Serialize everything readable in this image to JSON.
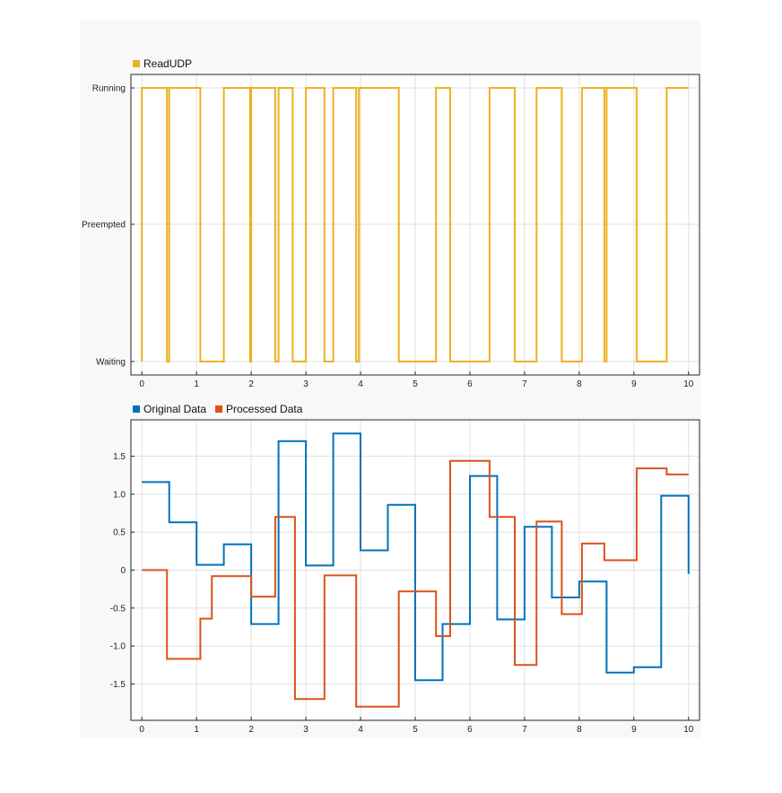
{
  "chart_data": [
    {
      "type": "line",
      "step": true,
      "legend": [
        "ReadUDP"
      ],
      "legend_placement": "top-left",
      "x_ticks": [
        "0",
        "1",
        "2",
        "3",
        "4",
        "5",
        "6",
        "7",
        "8",
        "9",
        "10"
      ],
      "xlim": [
        -0.2,
        10.2
      ],
      "y_ticks": [
        "Waiting",
        "Preempted",
        "Running"
      ],
      "grid": true,
      "series": [
        {
          "name": "ReadUDP",
          "color": "#EDB120",
          "x": [
            0,
            0,
            0.46,
            0.46,
            0.5,
            0.5,
            1.07,
            1.07,
            1.28,
            1.28,
            1.5,
            1.5,
            1.98,
            1.98,
            2,
            2,
            2.44,
            2.44,
            2.5,
            2.5,
            2.76,
            2.76,
            2.95,
            2.95,
            3,
            3,
            3.34,
            3.34,
            3.5,
            3.5,
            3.92,
            3.92,
            3.97,
            3.97,
            4.7,
            4.7,
            5.38,
            5.38,
            5.64,
            5.64,
            6.36,
            6.36,
            6.82,
            6.82,
            7.22,
            7.22,
            7.68,
            7.68,
            8.05,
            8.05,
            8.46,
            8.46,
            8.5,
            8.5,
            9.05,
            9.05,
            9.6,
            9.6,
            10
          ],
          "y": [
            "Waiting",
            "Running",
            "Running",
            "Waiting",
            "Waiting",
            "Running",
            "Running",
            "Waiting",
            "Waiting",
            "Waiting",
            "Waiting",
            "Running",
            "Running",
            "Waiting",
            "Waiting",
            "Running",
            "Running",
            "Waiting",
            "Waiting",
            "Running",
            "Running",
            "Waiting",
            "Waiting",
            "Waiting",
            "Waiting",
            "Running",
            "Running",
            "Waiting",
            "Waiting",
            "Running",
            "Running",
            "Waiting",
            "Waiting",
            "Running",
            "Running",
            "Waiting",
            "Waiting",
            "Running",
            "Running",
            "Waiting",
            "Waiting",
            "Running",
            "Running",
            "Waiting",
            "Waiting",
            "Running",
            "Running",
            "Waiting",
            "Waiting",
            "Running",
            "Running",
            "Waiting",
            "Waiting",
            "Running",
            "Running",
            "Waiting",
            "Waiting",
            "Running",
            "Running"
          ]
        }
      ]
    },
    {
      "type": "line",
      "step": true,
      "legend": [
        "Original Data",
        "Processed Data"
      ],
      "legend_placement": "top-left",
      "x_ticks": [
        "0",
        "1",
        "2",
        "3",
        "4",
        "5",
        "6",
        "7",
        "8",
        "9",
        "10"
      ],
      "xlim": [
        -0.2,
        10.2
      ],
      "ylim": [
        -1.98,
        1.98
      ],
      "y_ticks": [
        "1.5",
        "1.0",
        "0.5",
        "0",
        "-0.5",
        "-1.0",
        "-1.5"
      ],
      "y_tick_values": [
        1.5,
        1.0,
        0.5,
        0,
        -0.5,
        -1.0,
        -1.5
      ],
      "grid": true,
      "series": [
        {
          "name": "Original Data",
          "color": "#0072BD",
          "breaks": [
            0,
            0.5,
            1,
            1.5,
            2,
            2.5,
            3,
            3.5,
            4,
            4.5,
            5,
            5.5,
            6,
            6.5,
            7,
            7.5,
            8,
            8.5,
            9,
            9.5,
            10
          ],
          "values": [
            1.16,
            0.63,
            0.07,
            0.34,
            -0.71,
            1.7,
            0.06,
            1.8,
            0.26,
            0.86,
            -1.45,
            -0.71,
            1.24,
            -0.65,
            0.57,
            -0.36,
            -0.15,
            -1.35,
            -1.28,
            0.98
          ],
          "end_value": -0.05
        },
        {
          "name": "Processed Data",
          "color": "#D95319",
          "breaks": [
            0,
            0.46,
            1.07,
            1.28,
            2,
            2.44,
            2.8,
            3.34,
            3.92,
            4.7,
            5.38,
            5.64,
            6.36,
            6.82,
            7.22,
            7.68,
            8.05,
            8.46,
            9.05,
            9.6,
            10
          ],
          "values": [
            0,
            -1.17,
            -0.64,
            -0.08,
            -0.35,
            0.7,
            -1.7,
            -0.07,
            -1.8,
            -0.28,
            -0.87,
            1.44,
            0.7,
            -1.25,
            0.64,
            -0.58,
            0.35,
            0.13,
            1.34,
            1.26
          ]
        }
      ]
    }
  ]
}
